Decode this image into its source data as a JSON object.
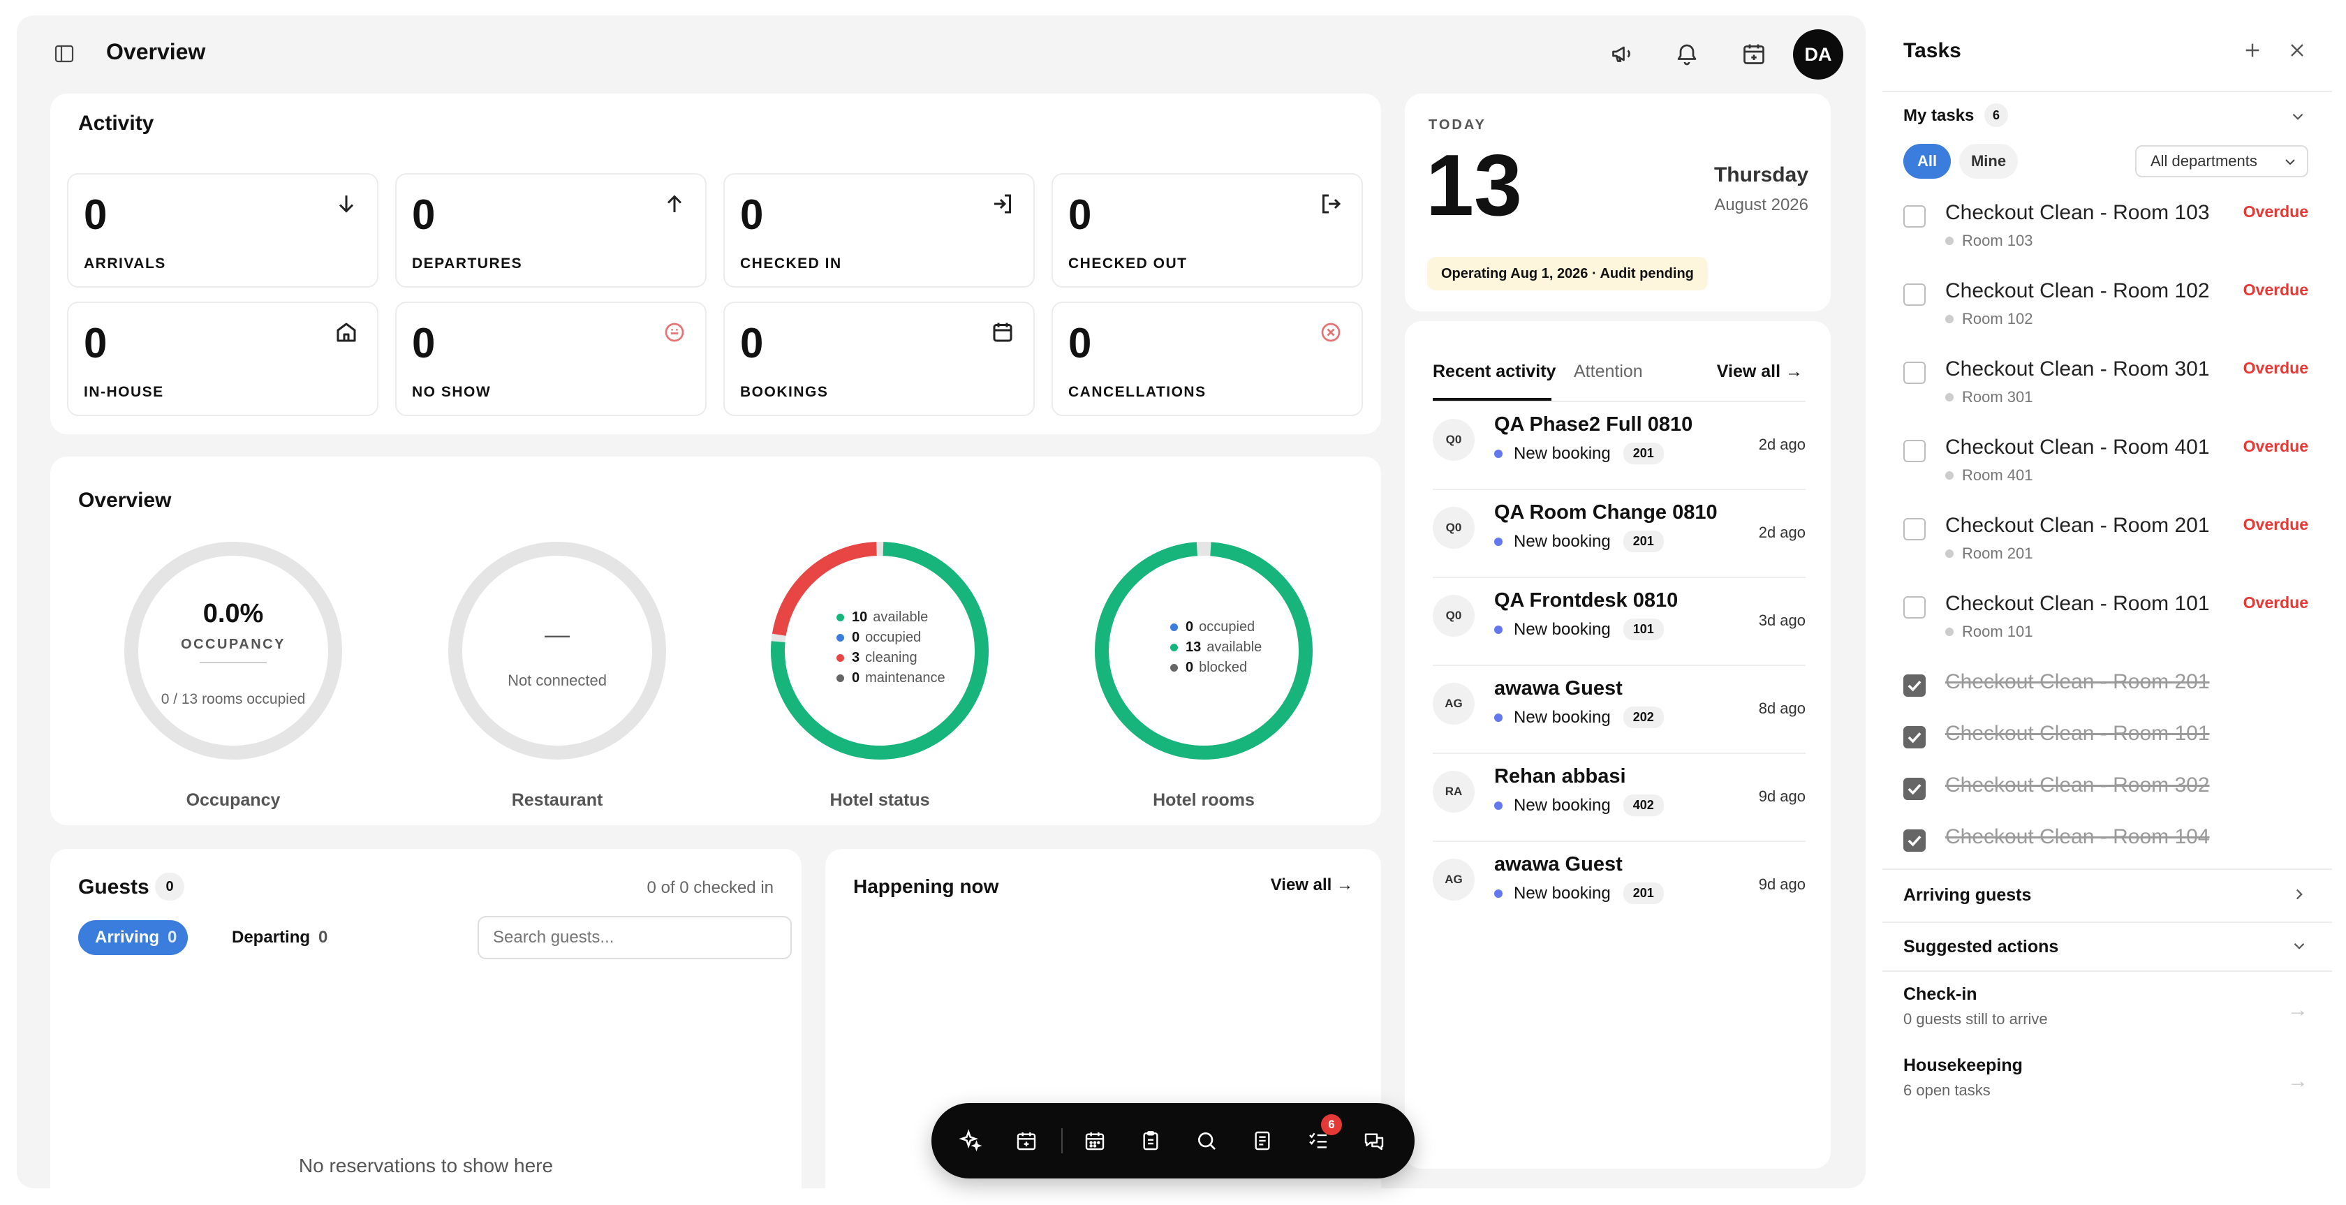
{
  "header": {
    "title": "Overview",
    "avatar_initials": "DA"
  },
  "activity": {
    "title": "Activity",
    "stats": [
      {
        "value": "0",
        "label": "ARRIVALS",
        "icon": "arrow-down-icon"
      },
      {
        "value": "0",
        "label": "DEPARTURES",
        "icon": "arrow-up-icon"
      },
      {
        "value": "0",
        "label": "CHECKED IN",
        "icon": "login-icon"
      },
      {
        "value": "0",
        "label": "CHECKED OUT",
        "icon": "logout-icon"
      },
      {
        "value": "0",
        "label": "IN-HOUSE",
        "icon": "home-icon"
      },
      {
        "value": "0",
        "label": "NO SHOW",
        "icon": "no-show-icon"
      },
      {
        "value": "0",
        "label": "BOOKINGS",
        "icon": "calendar-icon"
      },
      {
        "value": "0",
        "label": "CANCELLATIONS",
        "icon": "cancel-icon"
      }
    ]
  },
  "overview": {
    "title": "Overview",
    "occupancy": {
      "value": "0.0%",
      "label": "OCCUPANCY",
      "sub": "0 / 13 rooms occupied",
      "caption": "Occupancy"
    },
    "restaurant": {
      "value": "—",
      "sub": "Not connected",
      "caption": "Restaurant"
    },
    "hotel_status": {
      "caption": "Hotel status",
      "items": [
        {
          "count": "10",
          "label": "available",
          "color": "#17b57c"
        },
        {
          "count": "0",
          "label": "occupied",
          "color": "#3b7ddd"
        },
        {
          "count": "3",
          "label": "cleaning",
          "color": "#e84545"
        },
        {
          "count": "0",
          "label": "maintenance",
          "color": "#666666"
        }
      ]
    },
    "hotel_rooms": {
      "caption": "Hotel rooms",
      "items": [
        {
          "count": "0",
          "label": "occupied",
          "color": "#3b7ddd"
        },
        {
          "count": "13",
          "label": "available",
          "color": "#17b57c"
        },
        {
          "count": "0",
          "label": "blocked",
          "color": "#666666"
        }
      ]
    }
  },
  "guests": {
    "title": "Guests",
    "count": "0",
    "checked_in": "0 of 0 checked in",
    "tab_arriving": "Arriving",
    "tab_arriving_count": "0",
    "tab_departing": "Departing",
    "tab_departing_count": "0",
    "search_placeholder": "Search guests...",
    "empty": "No reservations to show here"
  },
  "happening": {
    "title": "Happening now",
    "view_all": "View all →"
  },
  "today": {
    "label": "TODAY",
    "day": "13",
    "weekday": "Thursday",
    "month_year": "August 2026",
    "badge": "Operating Aug 1, 2026 · Audit pending"
  },
  "recent": {
    "tab_recent": "Recent activity",
    "tab_attention": "Attention",
    "view_all": "View all →",
    "items": [
      {
        "initials": "Q0",
        "name": "QA Phase2 Full 0810",
        "type": "New booking",
        "room": "201",
        "time": "2d ago"
      },
      {
        "initials": "Q0",
        "name": "QA Room Change 0810",
        "type": "New booking",
        "room": "201",
        "time": "2d ago"
      },
      {
        "initials": "Q0",
        "name": "QA Frontdesk 0810",
        "type": "New booking",
        "room": "101",
        "time": "3d ago"
      },
      {
        "initials": "AG",
        "name": "awawa Guest",
        "type": "New booking",
        "room": "202",
        "time": "8d ago"
      },
      {
        "initials": "RA",
        "name": "Rehan abbasi",
        "type": "New booking",
        "room": "402",
        "time": "9d ago"
      },
      {
        "initials": "AG",
        "name": "awawa Guest",
        "type": "New booking",
        "room": "201",
        "time": "9d ago"
      }
    ]
  },
  "tasks": {
    "title": "Tasks",
    "my_tasks": "My tasks",
    "my_tasks_count": "6",
    "filter_all": "All",
    "filter_mine": "Mine",
    "department": "All departments",
    "open": [
      {
        "name": "Checkout Clean - Room 103",
        "room": "Room 103",
        "status": "Overdue"
      },
      {
        "name": "Checkout Clean - Room 102",
        "room": "Room 102",
        "status": "Overdue"
      },
      {
        "name": "Checkout Clean - Room 301",
        "room": "Room 301",
        "status": "Overdue"
      },
      {
        "name": "Checkout Clean - Room 401",
        "room": "Room 401",
        "status": "Overdue"
      },
      {
        "name": "Checkout Clean - Room 201",
        "room": "Room 201",
        "status": "Overdue"
      },
      {
        "name": "Checkout Clean - Room 101",
        "room": "Room 101",
        "status": "Overdue"
      }
    ],
    "done": [
      {
        "name": "Checkout Clean - Room 201"
      },
      {
        "name": "Checkout Clean - Room 101"
      },
      {
        "name": "Checkout Clean - Room 302"
      },
      {
        "name": "Checkout Clean - Room 104"
      }
    ],
    "arriving_guests": "Arriving guests",
    "suggested_actions": "Suggested actions",
    "suggestions": [
      {
        "title": "Check-in",
        "sub": "0 guests still to arrive"
      },
      {
        "title": "Housekeeping",
        "sub": "6 open tasks"
      }
    ]
  },
  "dock": {
    "tasks_badge": "6"
  }
}
